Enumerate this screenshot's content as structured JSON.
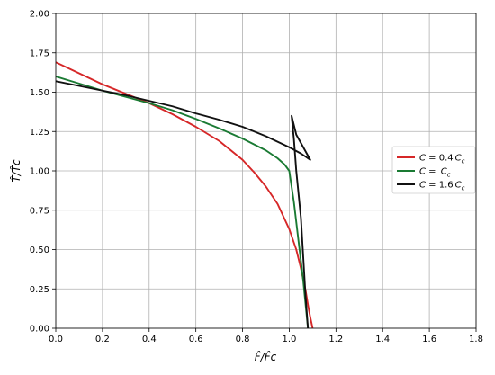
{
  "chart_data": {
    "type": "line",
    "title": "",
    "xlabel": "F̂/F̂c",
    "ylabel": "T̂/T̂c",
    "xlim": [
      0,
      1.8
    ],
    "ylim": [
      0,
      2.0
    ],
    "grid": true,
    "legend_position": "center-right",
    "x_ticks": [
      0.0,
      0.2,
      0.4,
      0.6,
      0.8,
      1.0,
      1.2,
      1.4,
      1.6,
      1.8
    ],
    "x_tick_labels": [
      "0.0",
      "0.2",
      "0.4",
      "0.6",
      "0.8",
      "1.0",
      "1.2",
      "1.4",
      "1.6",
      "1.8"
    ],
    "y_ticks": [
      0.0,
      0.25,
      0.5,
      0.75,
      1.0,
      1.25,
      1.5,
      1.75,
      2.0
    ],
    "y_tick_labels": [
      "0.00",
      "0.25",
      "0.50",
      "0.75",
      "1.00",
      "1.25",
      "1.50",
      "1.75",
      "2.00"
    ],
    "series": [
      {
        "name": "C = 0.4 Cc",
        "legend_main": "C",
        "legend_eq": " = 0.4",
        "legend_var": "C",
        "legend_sub": "c",
        "color": "#d62728",
        "points": [
          [
            0.0,
            1.69
          ],
          [
            0.1,
            1.62
          ],
          [
            0.2,
            1.55
          ],
          [
            0.3,
            1.49
          ],
          [
            0.4,
            1.43
          ],
          [
            0.5,
            1.36
          ],
          [
            0.6,
            1.28
          ],
          [
            0.7,
            1.19
          ],
          [
            0.8,
            1.07
          ],
          [
            0.85,
            0.99
          ],
          [
            0.9,
            0.9
          ],
          [
            0.95,
            0.79
          ],
          [
            1.0,
            0.63
          ],
          [
            1.03,
            0.5
          ],
          [
            1.05,
            0.38
          ],
          [
            1.07,
            0.24
          ],
          [
            1.08,
            0.15
          ],
          [
            1.09,
            0.07
          ],
          [
            1.1,
            0.0
          ]
        ]
      },
      {
        "name": "C = Cc",
        "legend_main": "C",
        "legend_eq": " = ",
        "legend_var": "C",
        "legend_sub": "c",
        "color": "#1a7a33",
        "points": [
          [
            0.0,
            1.6
          ],
          [
            0.1,
            1.555
          ],
          [
            0.2,
            1.51
          ],
          [
            0.3,
            1.47
          ],
          [
            0.4,
            1.43
          ],
          [
            0.5,
            1.385
          ],
          [
            0.6,
            1.33
          ],
          [
            0.7,
            1.27
          ],
          [
            0.8,
            1.205
          ],
          [
            0.9,
            1.13
          ],
          [
            0.95,
            1.08
          ],
          [
            0.98,
            1.04
          ],
          [
            1.0,
            1.0
          ],
          [
            1.02,
            0.8
          ],
          [
            1.04,
            0.55
          ],
          [
            1.06,
            0.3
          ],
          [
            1.07,
            0.15
          ],
          [
            1.08,
            0.0
          ]
        ]
      },
      {
        "name": "C = 1.6 Cc",
        "legend_main": "C",
        "legend_eq": " = 1.6",
        "legend_var": "C",
        "legend_sub": "c",
        "color": "#111111",
        "points": [
          [
            0.0,
            1.57
          ],
          [
            0.1,
            1.54
          ],
          [
            0.2,
            1.51
          ],
          [
            0.3,
            1.48
          ],
          [
            0.4,
            1.445
          ],
          [
            0.5,
            1.41
          ],
          [
            0.6,
            1.365
          ],
          [
            0.7,
            1.325
          ],
          [
            0.8,
            1.28
          ],
          [
            0.9,
            1.22
          ],
          [
            1.0,
            1.15
          ],
          [
            1.05,
            1.11
          ],
          [
            1.09,
            1.07
          ],
          [
            1.06,
            1.15
          ],
          [
            1.03,
            1.23
          ],
          [
            1.01,
            1.35
          ],
          [
            1.02,
            1.2
          ],
          [
            1.03,
            1.0
          ],
          [
            1.05,
            0.7
          ],
          [
            1.06,
            0.45
          ],
          [
            1.07,
            0.2
          ],
          [
            1.08,
            0.0
          ]
        ]
      }
    ]
  }
}
